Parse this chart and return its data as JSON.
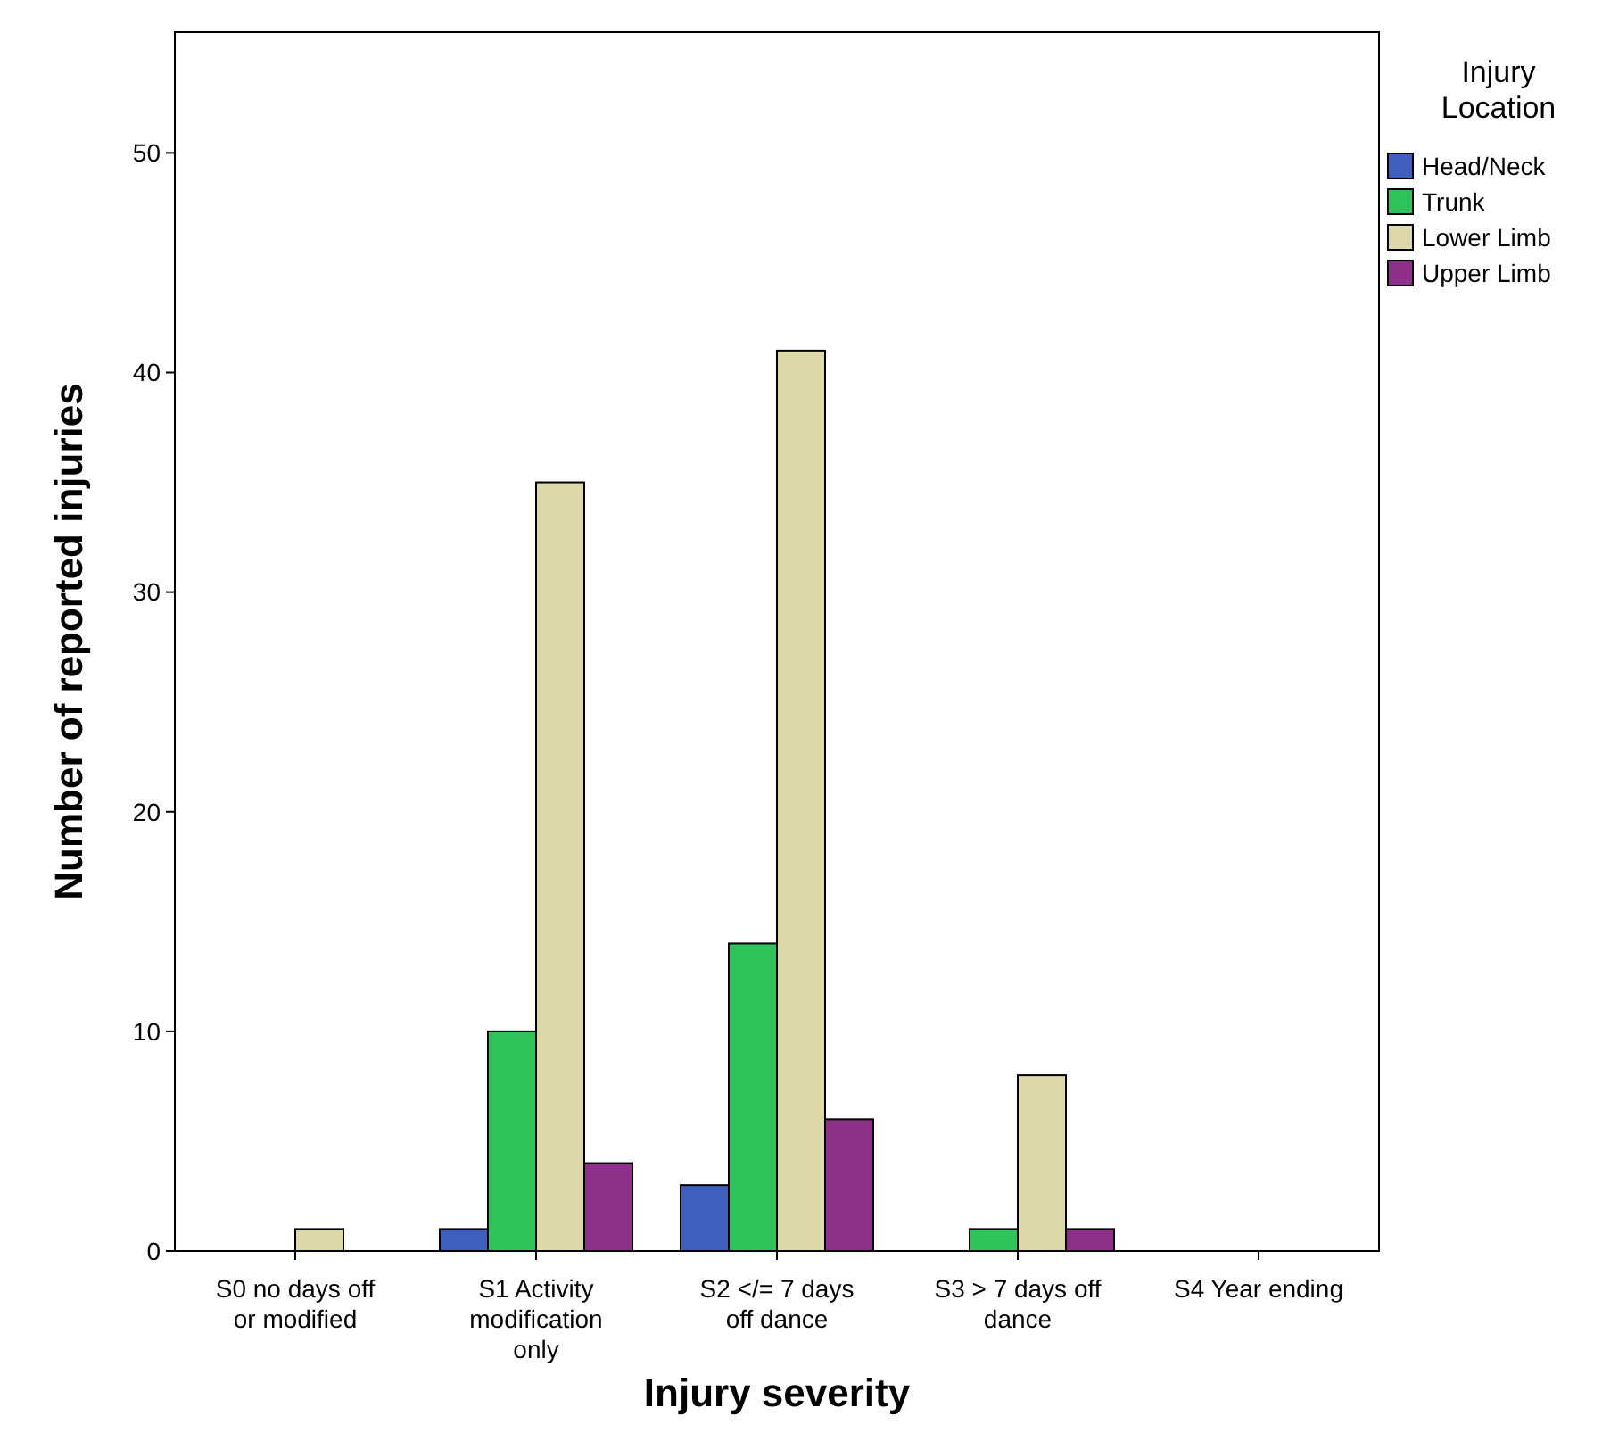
{
  "chart_data": {
    "type": "bar",
    "xlabel": "Injury severity",
    "ylabel": "Number of reported injuries",
    "legend_title": "Injury Location",
    "legend": "right",
    "categories": [
      "S0 no days off or modified",
      "S1 Activity modification only",
      "S2 </= 7 days off dance",
      "S3 > 7 days off dance",
      "S4 Year ending"
    ],
    "series": [
      {
        "name": "Head/Neck",
        "color": "#3f5fbf",
        "values": [
          null,
          1,
          3,
          null,
          null
        ]
      },
      {
        "name": "Trunk",
        "color": "#2fc45a",
        "values": [
          null,
          10,
          14,
          1,
          null
        ]
      },
      {
        "name": "Lower Limb",
        "color": "#dcd8a8",
        "values": [
          1,
          35,
          41,
          8,
          null
        ]
      },
      {
        "name": "Upper Limb",
        "color": "#8e2f8a",
        "values": [
          null,
          4,
          6,
          1,
          null
        ]
      }
    ],
    "ylim": [
      0,
      55.5
    ],
    "yticks": [
      0,
      10,
      20,
      30,
      40,
      50
    ],
    "grid": false
  }
}
